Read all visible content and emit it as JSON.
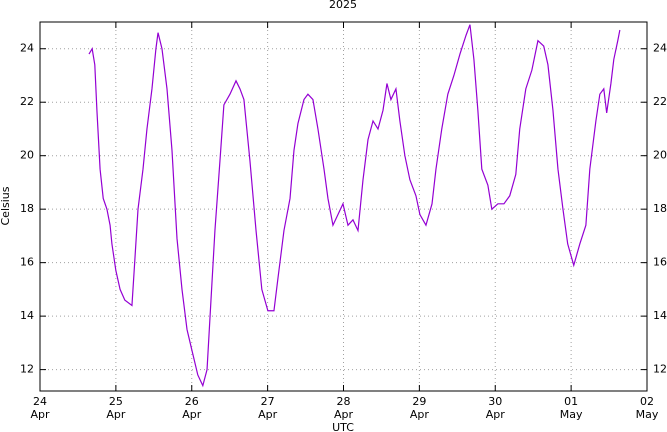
{
  "chart_data": {
    "type": "line",
    "title": "2025",
    "x_label": "UTC",
    "y_label": "Celsius",
    "grid": true,
    "xlim": [
      "2025-04-24T00:00",
      "2025-05-02T00:00"
    ],
    "xticks": [
      {
        "value": "2025-04-24T00:00",
        "label": [
          "24",
          "Apr"
        ]
      },
      {
        "value": "2025-04-25T00:00",
        "label": [
          "25",
          "Apr"
        ]
      },
      {
        "value": "2025-04-26T00:00",
        "label": [
          "26",
          "Apr"
        ]
      },
      {
        "value": "2025-04-27T00:00",
        "label": [
          "27",
          "Apr"
        ]
      },
      {
        "value": "2025-04-28T00:00",
        "label": [
          "28",
          "Apr"
        ]
      },
      {
        "value": "2025-04-29T00:00",
        "label": [
          "29",
          "Apr"
        ]
      },
      {
        "value": "2025-04-30T00:00",
        "label": [
          "30",
          "Apr"
        ]
      },
      {
        "value": "2025-05-01T00:00",
        "label": [
          "01",
          "May"
        ]
      },
      {
        "value": "2025-05-02T00:00",
        "label": [
          "02",
          "May"
        ]
      }
    ],
    "ylim": [
      11.2,
      25.0
    ],
    "yticks": [
      12,
      14,
      16,
      18,
      20,
      22,
      24
    ],
    "x": [
      "2025-04-24T15:30",
      "2025-04-24T16:30",
      "2025-04-24T17:20",
      "2025-04-24T18:00",
      "2025-04-24T19:00",
      "2025-04-24T20:00",
      "2025-04-24T21:10",
      "2025-04-24T22:10",
      "2025-04-24T22:45",
      "2025-04-25T00:00",
      "2025-04-25T01:20",
      "2025-04-25T02:50",
      "2025-04-25T05:05",
      "2025-04-25T06:00",
      "2025-04-25T07:00",
      "2025-04-25T08:35",
      "2025-04-25T09:50",
      "2025-04-25T11:25",
      "2025-04-25T12:40",
      "2025-04-25T13:20",
      "2025-04-25T14:35",
      "2025-04-25T16:10",
      "2025-04-25T17:45",
      "2025-04-25T19:20",
      "2025-04-25T20:55",
      "2025-04-25T22:30",
      "2025-04-26T00:00",
      "2025-04-26T01:55",
      "2025-04-26T03:30",
      "2025-04-26T04:50",
      "2025-04-26T06:05",
      "2025-04-26T07:20",
      "2025-04-26T08:55",
      "2025-04-26T10:10",
      "2025-04-26T12:05",
      "2025-04-26T14:00",
      "2025-04-26T15:15",
      "2025-04-26T16:30",
      "2025-04-26T18:25",
      "2025-04-26T20:20",
      "2025-04-26T22:10",
      "2025-04-27T00:05",
      "2025-04-27T02:00",
      "2025-04-27T03:15",
      "2025-04-27T05:10",
      "2025-04-27T07:05",
      "2025-04-27T08:20",
      "2025-04-27T09:35",
      "2025-04-27T11:30",
      "2025-04-27T12:45",
      "2025-04-27T14:20",
      "2025-04-27T15:55",
      "2025-04-27T17:50",
      "2025-04-27T19:05",
      "2025-04-27T20:40",
      "2025-04-27T22:15",
      "2025-04-27T23:50",
      "2025-04-28T01:25",
      "2025-04-28T03:00",
      "2025-04-28T04:35",
      "2025-04-28T06:10",
      "2025-04-28T07:45",
      "2025-04-28T09:20",
      "2025-04-28T10:55",
      "2025-04-28T12:30",
      "2025-04-28T13:45",
      "2025-04-28T15:00",
      "2025-04-28T16:35",
      "2025-04-28T17:50",
      "2025-04-28T19:25",
      "2025-04-28T21:00",
      "2025-04-28T22:55",
      "2025-04-29T00:10",
      "2025-04-29T02:05",
      "2025-04-29T04:00",
      "2025-04-29T05:15",
      "2025-04-29T07:05",
      "2025-04-29T09:00",
      "2025-04-29T10:55",
      "2025-04-29T12:50",
      "2025-04-29T14:45",
      "2025-04-29T16:00",
      "2025-04-29T17:15",
      "2025-04-29T18:30",
      "2025-04-29T19:45",
      "2025-04-29T21:40",
      "2025-04-29T22:55",
      "2025-04-30T00:50",
      "2025-04-30T02:45",
      "2025-04-30T04:35",
      "2025-04-30T06:30",
      "2025-04-30T07:45",
      "2025-04-30T09:40",
      "2025-04-30T11:35",
      "2025-04-30T13:30",
      "2025-04-30T15:20",
      "2025-04-30T16:40",
      "2025-04-30T18:15",
      "2025-04-30T19:50",
      "2025-04-30T21:25",
      "2025-04-30T22:55",
      "2025-05-01T00:50",
      "2025-05-01T02:45",
      "2025-05-01T04:40",
      "2025-05-01T05:55",
      "2025-05-01T07:50",
      "2025-05-01T09:05",
      "2025-05-01T10:20",
      "2025-05-01T11:15",
      "2025-05-01T12:35",
      "2025-05-01T13:30",
      "2025-05-01T14:45",
      "2025-05-01T15:25"
    ],
    "series": [
      {
        "color": "#9400d3",
        "values": [
          23.8,
          24.0,
          23.4,
          21.7,
          19.5,
          18.4,
          18.0,
          17.4,
          16.7,
          15.7,
          15.0,
          14.6,
          14.4,
          16.1,
          18.0,
          19.5,
          21.0,
          22.5,
          24.0,
          24.6,
          24.0,
          22.5,
          20.2,
          16.9,
          15.0,
          13.5,
          12.75,
          11.8,
          11.4,
          12.0,
          14.6,
          17.2,
          19.8,
          21.9,
          22.3,
          22.8,
          22.5,
          22.1,
          19.8,
          17.2,
          15.0,
          14.2,
          14.2,
          15.4,
          17.2,
          18.4,
          20.2,
          21.2,
          22.1,
          22.3,
          22.1,
          21.0,
          19.5,
          18.4,
          17.4,
          17.8,
          18.2,
          17.4,
          17.6,
          17.2,
          19.1,
          20.6,
          21.3,
          21.0,
          21.7,
          22.7,
          22.1,
          22.5,
          21.3,
          20.0,
          19.1,
          18.5,
          17.8,
          17.4,
          18.2,
          19.5,
          21.0,
          22.3,
          23.0,
          23.8,
          24.5,
          24.9,
          23.6,
          21.7,
          19.5,
          18.9,
          18.0,
          18.2,
          18.2,
          18.5,
          19.3,
          21.0,
          22.5,
          23.2,
          24.3,
          24.1,
          23.4,
          21.7,
          19.5,
          18.0,
          16.7,
          15.9,
          16.7,
          17.4,
          19.5,
          21.3,
          22.3,
          22.5,
          21.6,
          22.7,
          23.6,
          24.3,
          24.7
        ]
      }
    ]
  }
}
